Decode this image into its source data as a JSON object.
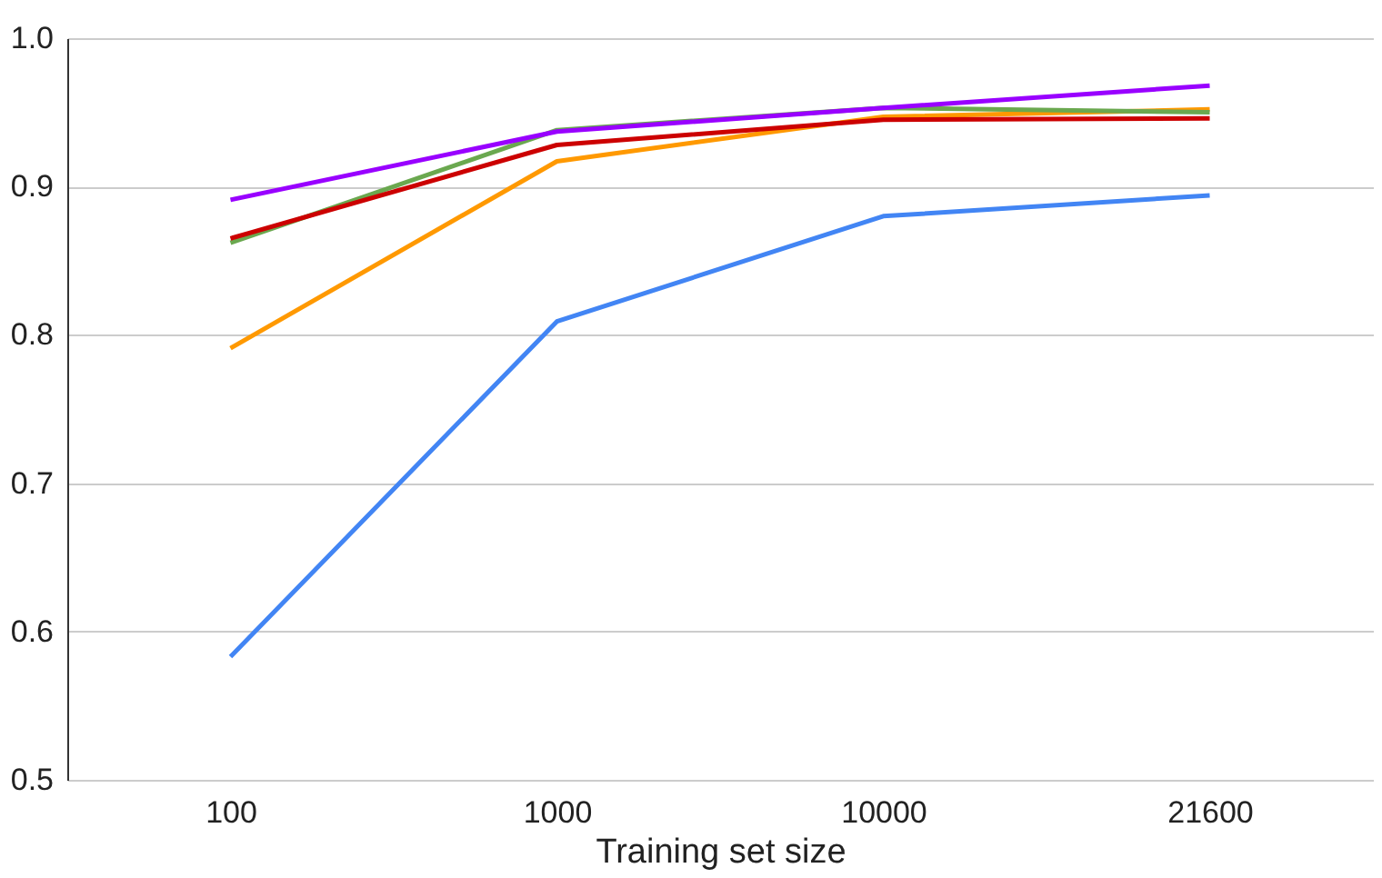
{
  "chart_data": {
    "type": "line",
    "xlabel": "Training set size",
    "categories": [
      "100",
      "1000",
      "10000",
      "21600"
    ],
    "series": [
      {
        "color": "#4285f4",
        "values": [
          0.583,
          0.809,
          0.88,
          0.894
        ]
      },
      {
        "color": "#ff9900",
        "values": [
          0.791,
          0.917,
          0.947,
          0.952
        ]
      },
      {
        "color": "#6aa84f",
        "values": [
          0.862,
          0.938,
          0.953,
          0.95
        ]
      },
      {
        "color": "#cc0000",
        "values": [
          0.865,
          0.928,
          0.945,
          0.946
        ]
      },
      {
        "color": "#9900ff",
        "values": [
          0.891,
          0.937,
          0.953,
          0.968
        ]
      }
    ],
    "ylim": [
      0.5,
      1.0
    ],
    "yticks": [
      {
        "value": 0.5,
        "label": "0.5"
      },
      {
        "value": 0.6,
        "label": "0.6"
      },
      {
        "value": 0.7,
        "label": "0.7"
      },
      {
        "value": 0.8,
        "label": "0.8"
      },
      {
        "value": 0.9,
        "label": "0.9"
      },
      {
        "value": 1.0,
        "label": "1.0"
      }
    ],
    "grid": "y",
    "legend": false,
    "marker": "none",
    "line_style": "solid"
  }
}
